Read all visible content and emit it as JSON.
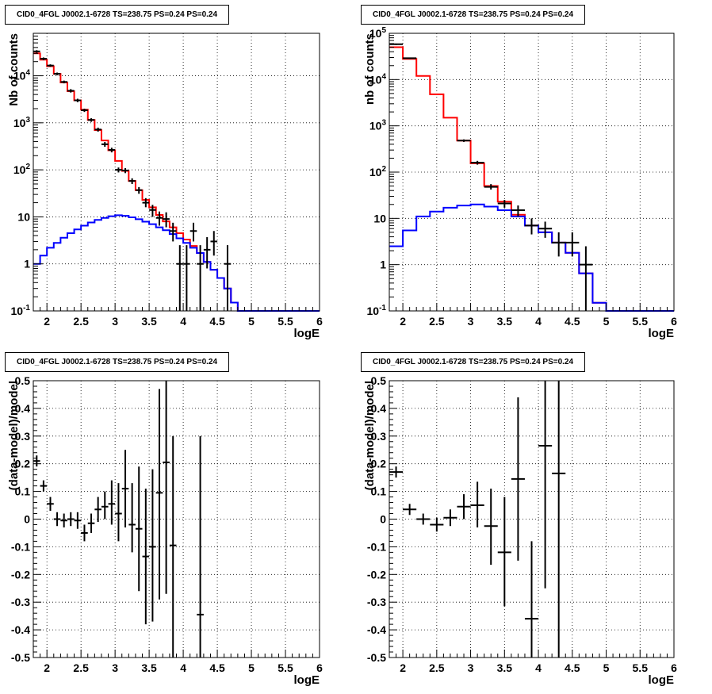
{
  "chart_data": [
    {
      "type": "histogram",
      "title": "CID0_4FGL J0002.1-6728 TS=238.75 PS=0.24 PS=0.24",
      "xlabel": "logE",
      "ylabel": "Nb of counts",
      "log_y": true,
      "grid": true,
      "xlim": [
        1.8,
        6.0
      ],
      "ylim": [
        0.1,
        80000
      ],
      "x_ticks": [
        "2",
        "2.5",
        "3",
        "3.5",
        "4",
        "4.5",
        "5",
        "5.5",
        "6"
      ],
      "y_ticks": [
        "10^-1",
        "1",
        "10",
        "10^2",
        "10^3",
        "10^4"
      ],
      "bin_edges": [
        1.8,
        1.9,
        2.0,
        2.1,
        2.2,
        2.3,
        2.4,
        2.5,
        2.6,
        2.7,
        2.8,
        2.9,
        3.0,
        3.1,
        3.2,
        3.3,
        3.4,
        3.5,
        3.6,
        3.7,
        3.8,
        3.9,
        4.0,
        4.1,
        4.2,
        4.3,
        4.4,
        4.5,
        4.6,
        4.7,
        4.8,
        4.9,
        5.0,
        5.1,
        5.2,
        5.3,
        5.4,
        5.5,
        5.6,
        5.7,
        5.8,
        5.9,
        6.0
      ],
      "series": [
        {
          "color": "#ff0000",
          "values": [
            30000,
            22000,
            16000,
            11000,
            7200,
            4700,
            3000,
            1900,
            1150,
            700,
            420,
            260,
            155,
            95,
            58,
            37,
            23,
            16,
            11,
            8,
            6,
            4.5,
            3.3,
            2.4,
            1.7,
            1.1,
            0.75,
            0.5,
            0.3,
            0.15,
            0.1,
            0.1,
            0.1,
            0.1,
            0.1,
            0.1,
            0.1,
            0.1,
            0.1,
            0.1,
            0.1,
            0.1
          ]
        },
        {
          "color": "#0000ff",
          "values": [
            1.0,
            1.5,
            2.2,
            2.8,
            3.6,
            4.5,
            5.4,
            6.5,
            7.6,
            8.6,
            9.5,
            10.3,
            10.8,
            10.5,
            9.8,
            8.9,
            7.9,
            7.0,
            6.0,
            5.2,
            4.3,
            3.5,
            2.8,
            2.2,
            1.7,
            1.1,
            0.75,
            0.5,
            0.3,
            0.15,
            0.1,
            0.1,
            0.1,
            0.1,
            0.1,
            0.1,
            0.1,
            0.1,
            0.1,
            0.1,
            0.1,
            0.1
          ]
        }
      ],
      "points": [
        {
          "x": 1.85,
          "y": 33000,
          "lo": 31000,
          "hi": 35000
        },
        {
          "x": 1.95,
          "y": 23000,
          "lo": 21500,
          "hi": 24500
        },
        {
          "x": 2.05,
          "y": 16500,
          "lo": 15500,
          "hi": 17500
        },
        {
          "x": 2.15,
          "y": 11000,
          "lo": 10300,
          "hi": 11700
        },
        {
          "x": 2.25,
          "y": 7400,
          "lo": 6900,
          "hi": 7900
        },
        {
          "x": 2.35,
          "y": 4800,
          "lo": 4400,
          "hi": 5200
        },
        {
          "x": 2.45,
          "y": 3000,
          "lo": 2750,
          "hi": 3250
        },
        {
          "x": 2.55,
          "y": 1850,
          "lo": 1700,
          "hi": 2000
        },
        {
          "x": 2.65,
          "y": 1150,
          "lo": 1050,
          "hi": 1250
        },
        {
          "x": 2.75,
          "y": 720,
          "lo": 650,
          "hi": 790
        },
        {
          "x": 2.85,
          "y": 350,
          "lo": 310,
          "hi": 390
        },
        {
          "x": 2.95,
          "y": 265,
          "lo": 235,
          "hi": 295
        },
        {
          "x": 3.05,
          "y": 100,
          "lo": 88,
          "hi": 112
        },
        {
          "x": 3.15,
          "y": 97,
          "lo": 85,
          "hi": 109
        },
        {
          "x": 3.25,
          "y": 58,
          "lo": 50,
          "hi": 66
        },
        {
          "x": 3.35,
          "y": 37,
          "lo": 31,
          "hi": 43
        },
        {
          "x": 3.45,
          "y": 20,
          "lo": 16,
          "hi": 25
        },
        {
          "x": 3.55,
          "y": 14,
          "lo": 10,
          "hi": 18
        },
        {
          "x": 3.65,
          "y": 9.5,
          "lo": 6.5,
          "hi": 13
        },
        {
          "x": 3.75,
          "y": 9,
          "lo": 6,
          "hi": 12.5
        },
        {
          "x": 3.85,
          "y": 5,
          "lo": 3,
          "hi": 7.5
        },
        {
          "x": 3.95,
          "y": 1,
          "lo": 0.1,
          "hi": 2.5
        },
        {
          "x": 4.05,
          "y": 1,
          "lo": 0.1,
          "hi": 2.5
        },
        {
          "x": 4.15,
          "y": 5,
          "lo": 3,
          "hi": 7.5
        },
        {
          "x": 4.25,
          "y": 1,
          "lo": 0.1,
          "hi": 2.5
        },
        {
          "x": 4.35,
          "y": 2,
          "lo": 0.8,
          "hi": 3.7
        },
        {
          "x": 4.45,
          "y": 3,
          "lo": 1.5,
          "hi": 5
        },
        {
          "x": 4.65,
          "y": 1,
          "lo": 0.1,
          "hi": 2.5
        }
      ]
    },
    {
      "type": "histogram",
      "title": "CID0_4FGL J0002.1-6728 TS=238.75 PS=0.24 PS=0.24",
      "xlabel": "logE",
      "ylabel": "nb of counts",
      "log_y": true,
      "grid": true,
      "xlim": [
        1.8,
        6.0
      ],
      "ylim": [
        0.1,
        100000
      ],
      "x_ticks": [
        "2",
        "2.5",
        "3",
        "3.5",
        "4",
        "4.5",
        "5",
        "5.5",
        "6"
      ],
      "y_ticks": [
        "10^-1",
        "1",
        "10",
        "10^2",
        "10^3",
        "10^4",
        "10^5"
      ],
      "bin_edges": [
        1.8,
        2.0,
        2.2,
        2.4,
        2.6,
        2.8,
        3.0,
        3.2,
        3.4,
        3.6,
        3.8,
        4.0,
        4.2,
        4.4,
        4.6,
        4.8,
        5.0,
        5.2,
        5.4,
        5.6,
        5.8,
        6.0
      ],
      "series": [
        {
          "color": "#ff0000",
          "values": [
            50000,
            28000,
            12000,
            4800,
            1500,
            480,
            155,
            50,
            23,
            12,
            7,
            5,
            3,
            1.8,
            0.65,
            0.15,
            0.1,
            0.1,
            0.1,
            0.1,
            0.1
          ]
        },
        {
          "color": "#0000ff",
          "values": [
            2.5,
            5.5,
            11,
            14,
            17,
            19,
            20,
            18,
            15,
            11,
            7,
            5,
            3,
            1.8,
            0.65,
            0.15,
            0.1,
            0.1,
            0.1,
            0.1,
            0.1
          ]
        }
      ],
      "points": [
        {
          "x": 1.9,
          "y": 58000,
          "lo": 56000,
          "hi": 60000
        },
        {
          "x": 2.1,
          "y": 29000,
          "lo": 28000,
          "hi": 30000
        },
        {
          "x": 2.9,
          "y": 480,
          "lo": 450,
          "hi": 510
        },
        {
          "x": 3.1,
          "y": 160,
          "lo": 145,
          "hi": 175
        },
        {
          "x": 3.3,
          "y": 48,
          "lo": 42,
          "hi": 55
        },
        {
          "x": 3.5,
          "y": 21,
          "lo": 17,
          "hi": 25
        },
        {
          "x": 3.7,
          "y": 15,
          "lo": 11,
          "hi": 19
        },
        {
          "x": 3.9,
          "y": 7,
          "lo": 4.5,
          "hi": 10
        },
        {
          "x": 4.1,
          "y": 6,
          "lo": 3.8,
          "hi": 8.5
        },
        {
          "x": 4.3,
          "y": 3,
          "lo": 1.5,
          "hi": 5
        },
        {
          "x": 4.5,
          "y": 3,
          "lo": 1.5,
          "hi": 5
        },
        {
          "x": 4.7,
          "y": 1,
          "lo": 0.1,
          "hi": 2.5
        }
      ]
    },
    {
      "type": "scatter",
      "title": "CID0_4FGL J0002.1-6728 TS=238.75 PS=0.24 PS=0.24",
      "xlabel": "logE",
      "ylabel": "(data-model)/model",
      "grid": true,
      "xlim": [
        1.8,
        6.0
      ],
      "ylim": [
        -0.5,
        0.5
      ],
      "x_ticks": [
        "2",
        "2.5",
        "3",
        "3.5",
        "4",
        "4.5",
        "5",
        "5.5",
        "6"
      ],
      "y_ticks": [
        "-0.5",
        "-0.4",
        "-0.3",
        "-0.2",
        "-0.1",
        "0",
        "0.1",
        "0.2",
        "0.3",
        "0.4",
        "0.5"
      ],
      "x_half_width": 0.05,
      "points": [
        {
          "x": 1.85,
          "y": 0.21,
          "lo": 0.19,
          "hi": 0.23
        },
        {
          "x": 1.95,
          "y": 0.12,
          "lo": 0.1,
          "hi": 0.14
        },
        {
          "x": 2.05,
          "y": 0.055,
          "lo": 0.03,
          "hi": 0.08
        },
        {
          "x": 2.15,
          "y": 0.0,
          "lo": -0.025,
          "hi": 0.025
        },
        {
          "x": 2.25,
          "y": -0.005,
          "lo": -0.03,
          "hi": 0.02
        },
        {
          "x": 2.35,
          "y": 0.0,
          "lo": -0.025,
          "hi": 0.025
        },
        {
          "x": 2.45,
          "y": -0.005,
          "lo": -0.035,
          "hi": 0.025
        },
        {
          "x": 2.55,
          "y": -0.05,
          "lo": -0.08,
          "hi": -0.02
        },
        {
          "x": 2.65,
          "y": -0.015,
          "lo": -0.05,
          "hi": 0.02
        },
        {
          "x": 2.75,
          "y": 0.035,
          "lo": -0.01,
          "hi": 0.08
        },
        {
          "x": 2.85,
          "y": 0.045,
          "lo": 0.0,
          "hi": 0.1
        },
        {
          "x": 2.95,
          "y": 0.055,
          "lo": -0.02,
          "hi": 0.14
        },
        {
          "x": 3.05,
          "y": 0.02,
          "lo": -0.08,
          "hi": 0.13
        },
        {
          "x": 3.15,
          "y": 0.11,
          "lo": -0.03,
          "hi": 0.25
        },
        {
          "x": 3.25,
          "y": -0.02,
          "lo": -0.12,
          "hi": 0.13
        },
        {
          "x": 3.35,
          "y": -0.035,
          "lo": -0.26,
          "hi": 0.19
        },
        {
          "x": 3.45,
          "y": -0.135,
          "lo": -0.38,
          "hi": 0.11
        },
        {
          "x": 3.55,
          "y": -0.1,
          "lo": -0.37,
          "hi": 0.18
        },
        {
          "x": 3.65,
          "y": 0.095,
          "lo": -0.29,
          "hi": 0.47
        },
        {
          "x": 3.75,
          "y": 0.205,
          "lo": -0.27,
          "hi": 0.5
        },
        {
          "x": 3.85,
          "y": -0.095,
          "lo": -0.5,
          "hi": 0.3
        },
        {
          "x": 4.25,
          "y": -0.345,
          "lo": -0.5,
          "hi": 0.3
        }
      ]
    },
    {
      "type": "scatter",
      "title": "CID0_4FGL J0002.1-6728 TS=238.75 PS=0.24 PS=0.24",
      "xlabel": "logE",
      "ylabel": "(data-model)/model",
      "grid": true,
      "xlim": [
        1.8,
        6.0
      ],
      "ylim": [
        -0.5,
        0.5
      ],
      "x_ticks": [
        "2",
        "2.5",
        "3",
        "3.5",
        "4",
        "4.5",
        "5",
        "5.5",
        "6"
      ],
      "y_ticks": [
        "-0.5",
        "-0.4",
        "-0.3",
        "-0.2",
        "-0.1",
        "0",
        "0.1",
        "0.2",
        "0.3",
        "0.4",
        "0.5"
      ],
      "x_half_width": 0.1,
      "points": [
        {
          "x": 1.9,
          "y": 0.17,
          "lo": 0.15,
          "hi": 0.19
        },
        {
          "x": 2.1,
          "y": 0.035,
          "lo": 0.015,
          "hi": 0.055
        },
        {
          "x": 2.3,
          "y": 0.0,
          "lo": -0.02,
          "hi": 0.02
        },
        {
          "x": 2.5,
          "y": -0.02,
          "lo": -0.045,
          "hi": 0.005
        },
        {
          "x": 2.7,
          "y": 0.005,
          "lo": -0.025,
          "hi": 0.035
        },
        {
          "x": 2.9,
          "y": 0.045,
          "lo": 0.0,
          "hi": 0.09
        },
        {
          "x": 3.1,
          "y": 0.05,
          "lo": -0.03,
          "hi": 0.135
        },
        {
          "x": 3.3,
          "y": -0.025,
          "lo": -0.165,
          "hi": 0.11
        },
        {
          "x": 3.5,
          "y": -0.12,
          "lo": -0.315,
          "hi": 0.08
        },
        {
          "x": 3.7,
          "y": 0.145,
          "lo": -0.15,
          "hi": 0.44
        },
        {
          "x": 3.9,
          "y": -0.36,
          "lo": -0.5,
          "hi": -0.08
        },
        {
          "x": 4.1,
          "y": 0.265,
          "lo": -0.25,
          "hi": 0.5
        },
        {
          "x": 4.3,
          "y": 0.165,
          "lo": -0.5,
          "hi": 0.5
        }
      ]
    }
  ]
}
